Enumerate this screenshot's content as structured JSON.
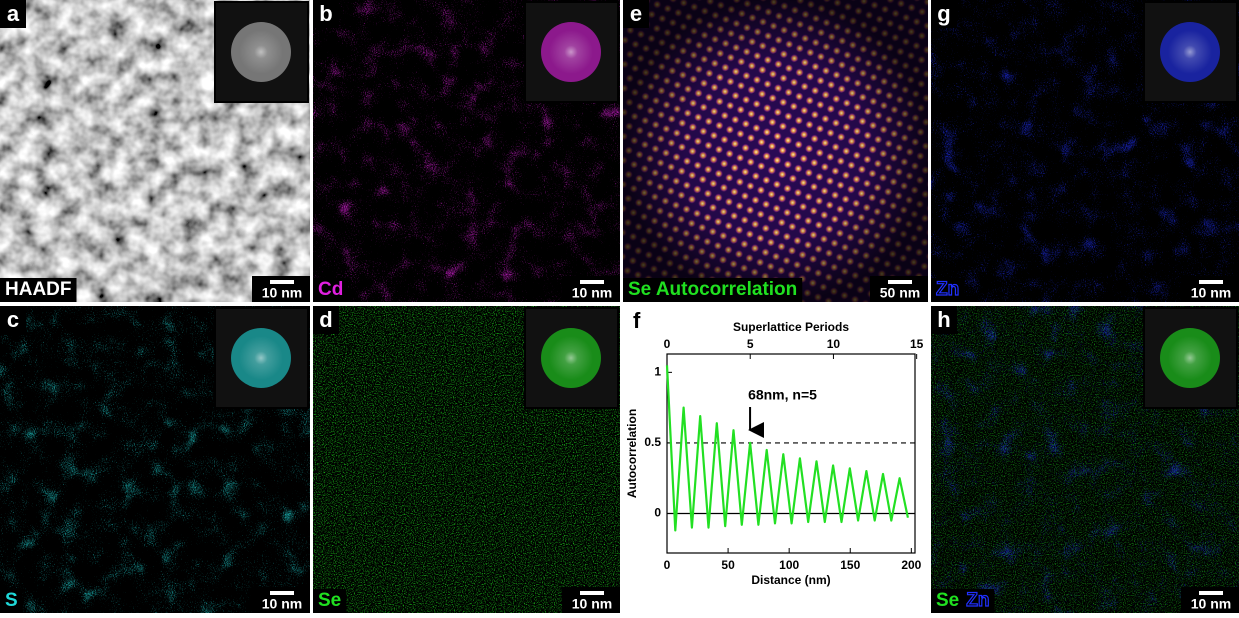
{
  "panels": [
    {
      "letter": "a",
      "label": "HAADF",
      "scale": "10 nm"
    },
    {
      "letter": "b",
      "label": "Cd",
      "scale": "10 nm"
    },
    {
      "letter": "e",
      "label": "Se Autocorrelation",
      "scale": "50 nm"
    },
    {
      "letter": "g",
      "label": "Zn",
      "scale": "10 nm"
    },
    {
      "letter": "c",
      "label": "S",
      "scale": "10 nm"
    },
    {
      "letter": "d",
      "label": "Se",
      "scale": "10 nm"
    },
    {
      "letter": "h",
      "label": "Se",
      "label2": "Zn",
      "scale": "10 nm"
    }
  ],
  "chart_data": {
    "type": "line",
    "panel": "f",
    "x_label": "Distance (nm)",
    "y_label": "Autocorrelation",
    "x2_label": "Superlattice Periods",
    "annotation": "68nm, n=5",
    "annotation_x": 68,
    "xlim": [
      0,
      203
    ],
    "xticks": [
      0,
      50,
      100,
      150,
      200
    ],
    "x2lim": [
      0,
      14.9
    ],
    "x2ticks": [
      0,
      5,
      10,
      15
    ],
    "ylim": [
      -0.28,
      1.13
    ],
    "yticks": [
      0,
      0.5,
      1
    ],
    "hlines": [
      {
        "value": 0.5,
        "style": "dashed"
      },
      {
        "value": 0,
        "style": "solid"
      }
    ],
    "series": [
      {
        "name": "Se",
        "color": "#22e022",
        "x": [
          0,
          6.8,
          13.6,
          20.4,
          27.2,
          34,
          40.8,
          47.6,
          54.4,
          61.2,
          68,
          74.8,
          81.6,
          88.4,
          95.2,
          102,
          108.8,
          115.6,
          122.4,
          129.2,
          136,
          142.8,
          149.6,
          156.4,
          163.2,
          170,
          176.8,
          183.6,
          190.4,
          197.2
        ],
        "values": [
          1.05,
          -0.12,
          0.75,
          -0.1,
          0.69,
          -0.1,
          0.64,
          -0.09,
          0.59,
          -0.08,
          0.5,
          -0.08,
          0.45,
          -0.07,
          0.42,
          -0.07,
          0.39,
          -0.06,
          0.37,
          -0.06,
          0.34,
          -0.06,
          0.32,
          -0.05,
          0.3,
          -0.05,
          0.28,
          -0.05,
          0.25,
          -0.03
        ]
      }
    ]
  }
}
